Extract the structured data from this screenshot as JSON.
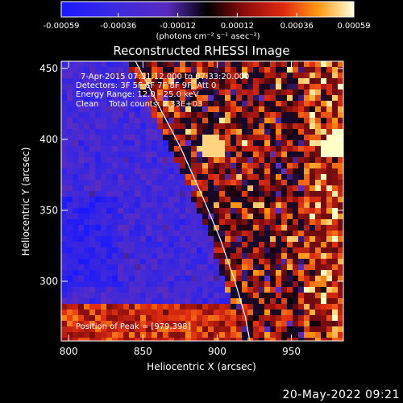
{
  "footer_date": "20-May-2022 09:21",
  "colorbar": {
    "tick_labels": [
      "-0.00059",
      "-0.00036",
      "-0.00012",
      "0.00012",
      "0.00036",
      "0.00059"
    ],
    "unit_label": "(photons cm⁻² s⁻¹ asec⁻²)",
    "range": [
      -0.00059,
      0.00059
    ]
  },
  "chart_data": {
    "type": "heatmap",
    "title": "Reconstructed RHESSI Image",
    "xlabel": "Heliocentric X (arcsec)",
    "ylabel": "Heliocentric Y (arcsec)",
    "xlim": [
      795,
      985
    ],
    "ylim": [
      258,
      455
    ],
    "xticks": [
      800,
      850,
      900,
      950
    ],
    "yticks": [
      300,
      350,
      400,
      450
    ],
    "annotations": [
      "7-Apr-2015 07:31:12.000 to 07:33:20.000",
      "Detectors: 3F 5F 6F 7F 8F 9F, Att 0",
      "Energy Range: 12.0 - 25.0 keV",
      "Clean    Total counts: 2.33E+03"
    ],
    "peak_label": "Position of Peak = [979,398]",
    "peak": [
      979,
      398
    ],
    "limb_curve": [
      [
        845,
        455
      ],
      [
        860,
        425
      ],
      [
        875,
        395
      ],
      [
        890,
        360
      ],
      [
        902,
        330
      ],
      [
        912,
        300
      ],
      [
        919,
        275
      ],
      [
        922,
        258
      ]
    ]
  }
}
